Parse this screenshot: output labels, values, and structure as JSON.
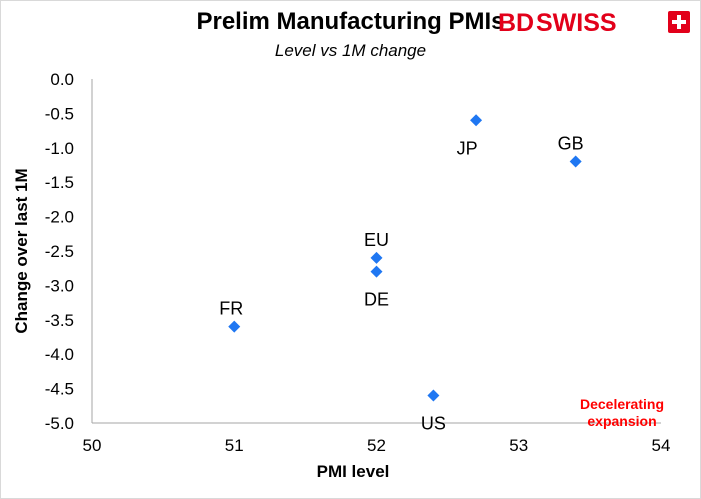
{
  "brand": {
    "logo_text_bd": "BD",
    "logo_text_swiss": "SWISS",
    "logo_color": "#e2001a"
  },
  "chart_data": {
    "type": "scatter",
    "title": "Prelim Manufacturing PMIs",
    "subtitle": "Level vs 1M change",
    "xlabel": "PMI level",
    "ylabel": "Change over last 1M",
    "xlim": [
      50,
      54
    ],
    "ylim": [
      -5.0,
      0.0
    ],
    "x_ticks": [
      "50",
      "51",
      "52",
      "53",
      "54"
    ],
    "y_ticks": [
      "0.0",
      "-0.5",
      "-1.0",
      "-1.5",
      "-2.0",
      "-2.5",
      "-3.0",
      "-3.5",
      "-4.0",
      "-4.5",
      "-5.0"
    ],
    "grid": false,
    "marker_color": "#1f77f2",
    "points": [
      {
        "label": "JP",
        "x": 52.7,
        "y": -0.6
      },
      {
        "label": "GB",
        "x": 53.4,
        "y": -1.2
      },
      {
        "label": "EU",
        "x": 52.0,
        "y": -2.6
      },
      {
        "label": "DE",
        "x": 52.0,
        "y": -2.8
      },
      {
        "label": "FR",
        "x": 51.0,
        "y": -3.6
      },
      {
        "label": "US",
        "x": 52.4,
        "y": -4.6
      }
    ],
    "annotation": {
      "lines": [
        "Decelerating",
        "expansion"
      ],
      "color": "#ff0000"
    }
  }
}
